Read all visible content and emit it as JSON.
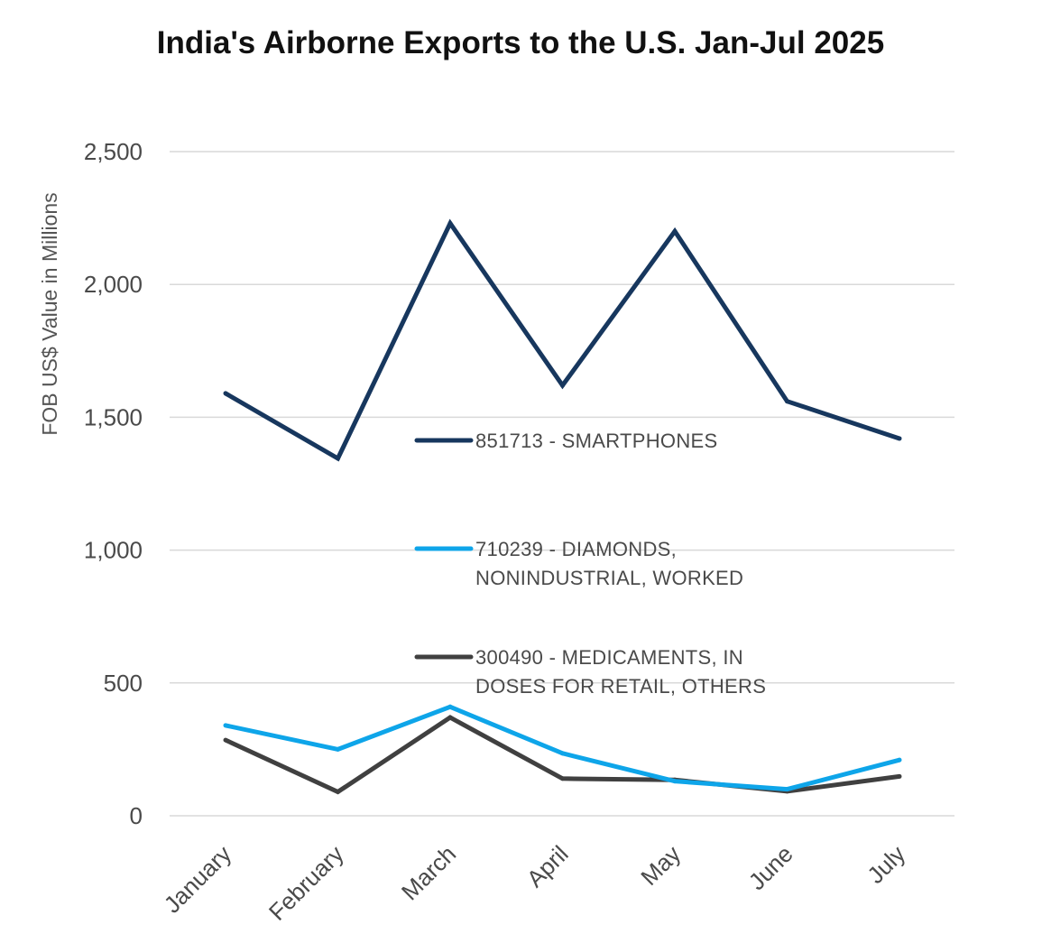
{
  "chart_data": {
    "type": "line",
    "title": "India's Airborne Exports to the U.S. Jan-Jul 2025",
    "ylabel": "FOB US$ Value in Millions",
    "xlabel": "",
    "categories": [
      "January",
      "February",
      "March",
      "April",
      "May",
      "June",
      "July"
    ],
    "ylim": [
      0,
      2500
    ],
    "yticks": [
      0,
      500,
      1000,
      1500,
      2000,
      2500
    ],
    "ytick_labels": [
      "0",
      "500",
      "1,000",
      "1,500",
      "2,000",
      "2,500"
    ],
    "grid": true,
    "legend_placement": "center",
    "series": [
      {
        "name": "851713 - SMARTPHONES",
        "legend_lines": [
          "851713 - SMARTPHONES"
        ],
        "color": "#17375e",
        "values": [
          1590,
          1345,
          2230,
          1620,
          2200,
          1560,
          1420
        ]
      },
      {
        "name": "710239 - DIAMONDS, NONINDUSTRIAL, WORKED",
        "legend_lines": [
          "710239 - DIAMONDS,",
          "NONINDUSTRIAL, WORKED"
        ],
        "color": "#0ea5e9",
        "values": [
          340,
          250,
          410,
          235,
          130,
          100,
          210
        ]
      },
      {
        "name": "300490 - MEDICAMENTS, IN DOSES FOR RETAIL, OTHERS",
        "legend_lines": [
          "300490 - MEDICAMENTS, IN",
          "DOSES FOR RETAIL, OTHERS"
        ],
        "color": "#404040",
        "values": [
          285,
          90,
          370,
          140,
          135,
          92,
          148
        ]
      }
    ]
  }
}
